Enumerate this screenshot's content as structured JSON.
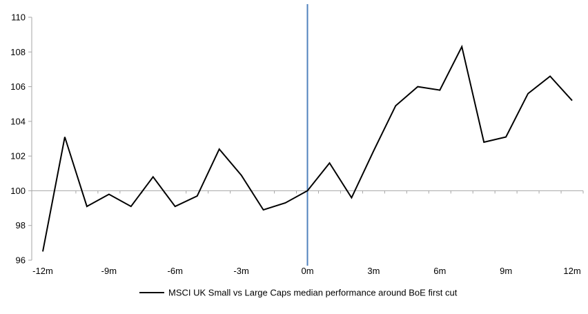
{
  "chart_data": {
    "type": "line",
    "title": "",
    "categories": [
      -12,
      -11,
      -10,
      -9,
      -8,
      -7,
      -6,
      -5,
      -4,
      -3,
      -2,
      -1,
      0,
      1,
      2,
      3,
      4,
      5,
      6,
      7,
      8,
      9,
      10,
      11,
      12
    ],
    "series": [
      {
        "name": "MSCI UK Small vs Large Caps median performance around BoE first cut",
        "color": "#000000",
        "values": [
          96.5,
          103.1,
          99.1,
          99.8,
          99.1,
          100.8,
          99.1,
          99.7,
          102.4,
          100.9,
          98.9,
          99.3,
          100.0,
          101.6,
          99.6,
          102.3,
          104.9,
          106.0,
          105.8,
          108.3,
          102.8,
          103.1,
          105.6,
          106.6,
          105.2
        ]
      }
    ],
    "ylim": [
      96,
      110
    ],
    "yticks": [
      96,
      98,
      100,
      102,
      104,
      106,
      108,
      110
    ],
    "xtick_labels": [
      "-12m",
      "-9m",
      "-6m",
      "-3m",
      "0m",
      "3m",
      "6m",
      "9m",
      "12m"
    ],
    "baseline_value": 100,
    "event_line_at": "0m",
    "legend_position": "bottom",
    "grid": "off",
    "colors": {
      "series": "#000000",
      "event_line": "#4f81bd",
      "axis": "#a6a6a6",
      "text": "#000000",
      "background": "#ffffff"
    }
  }
}
